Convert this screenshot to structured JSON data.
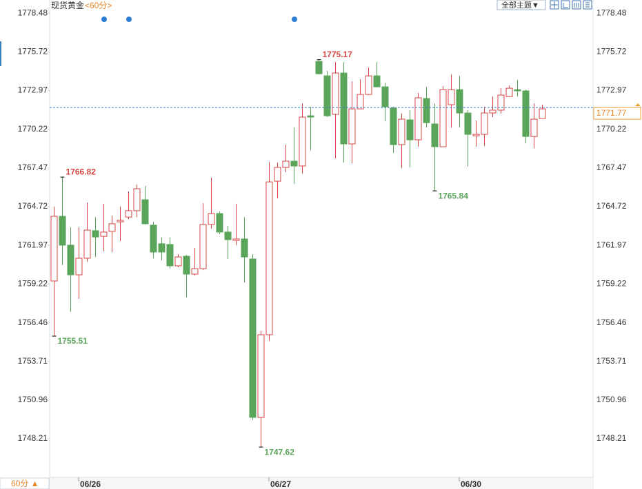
{
  "chart_data": {
    "type": "candlestick",
    "title": "现货黄金",
    "subtitle": "<60分>",
    "theme_menu": "全部主题▼",
    "period_button": "60分 ▲",
    "categories": [
      null,
      null,
      null,
      "06/26",
      null,
      null,
      null,
      null,
      null,
      null,
      null,
      null,
      null,
      null,
      null,
      null,
      null,
      null,
      null,
      null,
      null,
      null,
      null,
      null,
      null,
      null,
      "06/27",
      null,
      null,
      null,
      null,
      null,
      null,
      null,
      null,
      null,
      null,
      null,
      null,
      null,
      null,
      null,
      null,
      null,
      null,
      null,
      null,
      null,
      null,
      "06/30",
      null,
      null,
      null,
      null,
      null,
      null,
      null,
      null,
      null,
      null
    ],
    "open": [
      1759.43,
      1764.03,
      1761.98,
      1759.87,
      1761.05,
      1763.01,
      1762.61,
      1762.96,
      1763.64,
      1763.98,
      1764.43,
      1765.21,
      1763.4,
      1762.08,
      1762.03,
      1760.51,
      1761.19,
      1759.92,
      1760.31,
      1763.45,
      1764.23,
      1762.91,
      1762.32,
      1762.42,
      1761.0,
      1749.73,
      1755.61,
      1766.53,
      1767.51,
      1767.95,
      1767.61,
      1771.18,
      1775.05,
      1774.02,
      1771.28,
      1774.22,
      1769.18,
      1771.67,
      1772.7,
      1774.02,
      1773.24,
      1771.72,
      1769.13,
      1770.89,
      1769.47,
      1772.41,
      1770.6,
      1768.98,
      1771.97,
      1773.04,
      1771.38,
      1769.76,
      1769.86,
      1771.38,
      1771.58,
      1772.55,
      1773.04,
      1772.95,
      1769.71,
      1770.99
    ],
    "high": [
      1764.72,
      1766.82,
      1763.25,
      1763.25,
      1765.01,
      1763.98,
      1764.92,
      1764.08,
      1764.72,
      1765.8,
      1766.29,
      1766.19,
      1763.64,
      1762.52,
      1762.52,
      1761.34,
      1761.29,
      1761.78,
      1764.96,
      1766.78,
      1764.38,
      1763.35,
      1764.92,
      1763.98,
      1761.34,
      1755.9,
      1767.9,
      1767.85,
      1769.13,
      1770.35,
      1772.06,
      1771.82,
      1775.17,
      1774.37,
      1775.0,
      1775.0,
      1773.63,
      1773.78,
      1774.61,
      1775.0,
      1773.53,
      1771.82,
      1771.33,
      1771.58,
      1772.8,
      1773.24,
      1772.06,
      1773.29,
      1774.12,
      1774.02,
      1771.58,
      1770.84,
      1771.82,
      1772.55,
      1773.14,
      1773.34,
      1773.73,
      1773.04,
      1772.06,
      1771.97
    ],
    "low": [
      1755.51,
      1760.56,
      1757.23,
      1758.16,
      1760.8,
      1761.14,
      1761.54,
      1761.49,
      1762.27,
      1763.84,
      1763.98,
      1763.45,
      1761.05,
      1760.9,
      1760.31,
      1760.41,
      1758.26,
      1759.82,
      1760.21,
      1763.15,
      1762.76,
      1761.0,
      1761.98,
      1759.33,
      1749.54,
      1747.62,
      1755.17,
      1765.31,
      1767.17,
      1766.34,
      1767.07,
      1768.73,
      1774.12,
      1771.09,
      1768.15,
      1767.85,
      1767.8,
      1771.67,
      1772.65,
      1773.24,
      1770.79,
      1768.54,
      1767.46,
      1767.51,
      1768.98,
      1770.35,
      1765.84,
      1768.98,
      1770.35,
      1770.35,
      1767.56,
      1768.98,
      1769.03,
      1771.09,
      1771.33,
      1772.51,
      1772.55,
      1769.22,
      1768.88,
      1770.99
    ],
    "close": [
      1764.03,
      1761.98,
      1759.87,
      1761.05,
      1763.05,
      1762.56,
      1762.91,
      1763.5,
      1763.74,
      1764.43,
      1765.99,
      1763.5,
      1761.49,
      1761.49,
      1760.51,
      1761.14,
      1759.92,
      1760.31,
      1763.45,
      1764.23,
      1762.91,
      1762.37,
      1762.42,
      1761.14,
      1749.73,
      1755.61,
      1766.48,
      1767.51,
      1767.95,
      1767.61,
      1771.09,
      1771.09,
      1774.17,
      1771.18,
      1774.22,
      1769.18,
      1771.67,
      1772.7,
      1774.02,
      1773.24,
      1771.82,
      1769.13,
      1770.94,
      1769.47,
      1772.46,
      1770.69,
      1768.98,
      1773.04,
      1773.04,
      1771.38,
      1769.86,
      1769.86,
      1771.38,
      1771.58,
      1772.65,
      1773.14,
      1772.95,
      1769.71,
      1770.94,
      1771.67
    ],
    "up_color": "#d64541",
    "down_color": "#5aa55a",
    "current": 1771.77,
    "ylim": [
      1745.47,
      1779.17
    ],
    "yticks": [
      1778.48,
      1775.72,
      1772.97,
      1770.22,
      1767.47,
      1764.72,
      1761.97,
      1759.22,
      1756.46,
      1753.71,
      1750.96,
      1748.21
    ]
  }
}
